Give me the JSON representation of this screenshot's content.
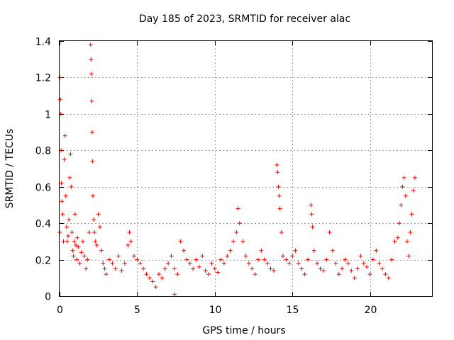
{
  "chart_data": {
    "type": "scatter",
    "title": "Day 185 of 2023, SRMTID for receiver alac",
    "xlabel": "GPS time / hours",
    "ylabel": "SRMTID / TECUs",
    "xlim": [
      0,
      24
    ],
    "ylim": [
      0,
      1.4
    ],
    "xticks": [
      0,
      5,
      10,
      15,
      20
    ],
    "xtick_labels": [
      "0",
      "5",
      "10",
      "15",
      "20"
    ],
    "yticks": [
      0,
      0.2,
      0.4,
      0.6,
      0.8,
      1.0,
      1.2,
      1.4
    ],
    "ytick_labels": [
      "0",
      "0.2",
      "0.4",
      "0.6",
      "0.8",
      "1",
      "1.2",
      "1.4"
    ],
    "grid": true,
    "marker": "plus",
    "color": "#ff0000",
    "series": [
      {
        "name": "SRMTID",
        "x": [
          0.0,
          0.02,
          0.05,
          0.08,
          0.1,
          0.12,
          0.15,
          0.2,
          0.25,
          0.3,
          0.35,
          0.4,
          0.45,
          0.5,
          0.55,
          0.6,
          0.65,
          0.7,
          0.75,
          0.8,
          0.85,
          0.9,
          0.95,
          1.0,
          1.05,
          1.1,
          1.15,
          1.2,
          1.3,
          1.4,
          1.5,
          1.6,
          1.7,
          1.8,
          1.9,
          2.0,
          2.02,
          2.05,
          2.08,
          2.1,
          2.12,
          2.15,
          2.2,
          2.25,
          2.3,
          2.4,
          2.5,
          2.6,
          2.7,
          2.8,
          2.9,
          3.0,
          3.2,
          3.4,
          3.6,
          3.8,
          4.0,
          4.2,
          4.4,
          4.5,
          4.6,
          4.8,
          5.0,
          5.2,
          5.4,
          5.6,
          5.8,
          6.0,
          6.2,
          6.4,
          6.6,
          6.8,
          7.0,
          7.2,
          7.4,
          7.6,
          7.8,
          8.0,
          8.2,
          8.4,
          8.6,
          8.8,
          9.0,
          9.2,
          9.4,
          9.6,
          9.8,
          10.0,
          10.2,
          10.4,
          10.6,
          10.8,
          11.0,
          11.2,
          11.4,
          11.5,
          11.6,
          11.8,
          12.0,
          12.2,
          12.4,
          12.6,
          12.8,
          13.0,
          13.2,
          13.4,
          13.6,
          13.8,
          14.0,
          14.05,
          14.1,
          14.15,
          14.2,
          14.3,
          14.4,
          14.6,
          14.8,
          15.0,
          15.2,
          15.4,
          15.6,
          15.8,
          16.0,
          16.2,
          16.25,
          16.3,
          16.4,
          16.6,
          16.8,
          17.0,
          17.2,
          17.4,
          17.6,
          17.8,
          18.0,
          18.2,
          18.4,
          18.6,
          18.8,
          19.0,
          19.2,
          19.4,
          19.6,
          19.8,
          20.0,
          20.2,
          20.4,
          20.6,
          20.8,
          21.0,
          21.2,
          21.4,
          21.6,
          21.8,
          21.9,
          22.0,
          22.1,
          22.2,
          22.3,
          22.4,
          22.5,
          22.6,
          22.7,
          22.8,
          22.9,
          7.4
        ],
        "y": [
          0.35,
          1.2,
          1.08,
          1.0,
          0.8,
          0.62,
          0.52,
          0.45,
          0.3,
          0.75,
          0.88,
          0.55,
          0.38,
          0.3,
          0.33,
          0.42,
          0.65,
          0.78,
          0.6,
          0.35,
          0.25,
          0.22,
          0.3,
          0.45,
          0.28,
          0.2,
          0.32,
          0.27,
          0.18,
          0.24,
          0.3,
          0.22,
          0.15,
          0.2,
          0.35,
          1.38,
          1.3,
          1.22,
          1.07,
          0.9,
          0.74,
          0.55,
          0.42,
          0.35,
          0.3,
          0.28,
          0.45,
          0.38,
          0.25,
          0.18,
          0.15,
          0.12,
          0.2,
          0.18,
          0.15,
          0.22,
          0.14,
          0.18,
          0.28,
          0.35,
          0.3,
          0.22,
          0.2,
          0.18,
          0.15,
          0.12,
          0.1,
          0.08,
          0.05,
          0.12,
          0.1,
          0.15,
          0.18,
          0.22,
          0.15,
          0.12,
          0.3,
          0.25,
          0.2,
          0.18,
          0.15,
          0.2,
          0.16,
          0.22,
          0.14,
          0.12,
          0.18,
          0.15,
          0.13,
          0.2,
          0.18,
          0.22,
          0.25,
          0.3,
          0.35,
          0.48,
          0.4,
          0.3,
          0.22,
          0.18,
          0.15,
          0.12,
          0.2,
          0.25,
          0.2,
          0.18,
          0.15,
          0.14,
          0.72,
          0.68,
          0.6,
          0.55,
          0.48,
          0.35,
          0.22,
          0.2,
          0.18,
          0.22,
          0.25,
          0.18,
          0.15,
          0.12,
          0.2,
          0.5,
          0.45,
          0.38,
          0.25,
          0.18,
          0.15,
          0.14,
          0.2,
          0.35,
          0.25,
          0.18,
          0.12,
          0.15,
          0.2,
          0.18,
          0.14,
          0.1,
          0.15,
          0.22,
          0.18,
          0.16,
          0.12,
          0.2,
          0.25,
          0.18,
          0.15,
          0.12,
          0.1,
          0.2,
          0.3,
          0.32,
          0.4,
          0.5,
          0.6,
          0.65,
          0.55,
          0.3,
          0.22,
          0.35,
          0.45,
          0.58,
          0.65,
          0.01
        ]
      }
    ]
  }
}
